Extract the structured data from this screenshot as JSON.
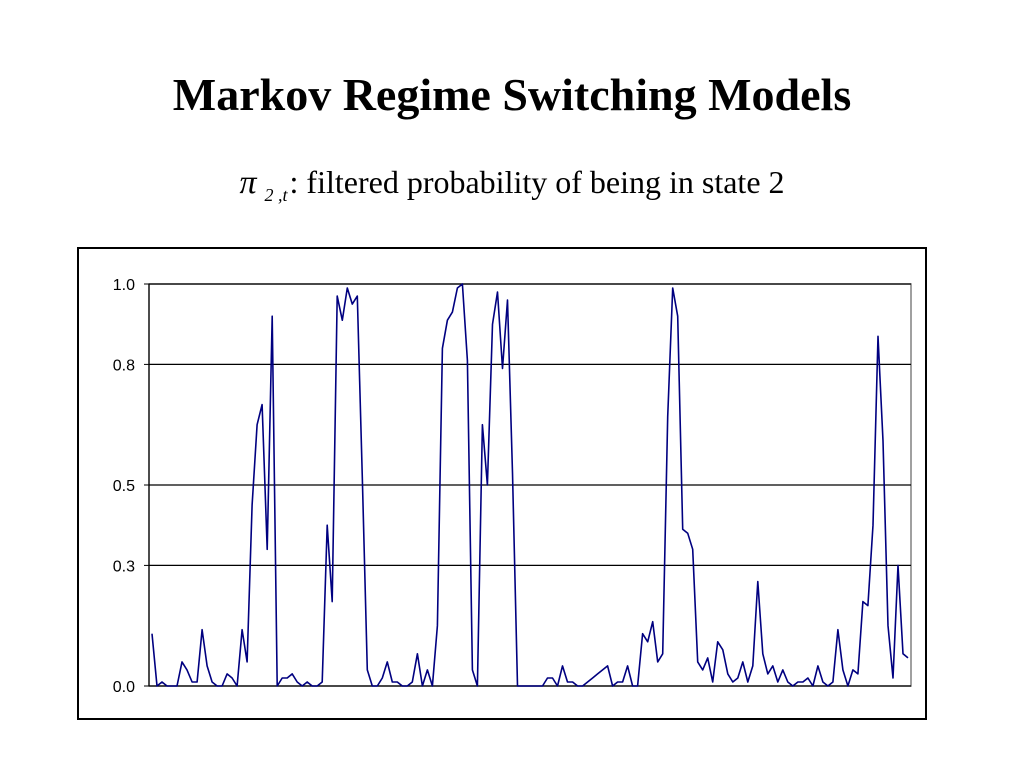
{
  "slide": {
    "title": "Markov Regime Switching Models",
    "subtitle_symbol": "π",
    "subtitle_sub": "2 ,t",
    "subtitle_text": ": filtered probability of being in state 2"
  },
  "colors": {
    "series_line": "#000080",
    "gridline": "#000000",
    "plot_border": "#808080"
  },
  "chart_data": {
    "type": "line",
    "title": "",
    "xlabel": "",
    "ylabel": "",
    "ylim": [
      0.0,
      1.0
    ],
    "yticks": [
      1.0,
      0.8,
      0.5,
      0.3,
      0.0
    ],
    "ytick_labels": [
      "1.0",
      "0.8",
      "0.5",
      "0.3",
      "0.0"
    ],
    "grid": true,
    "legend": "none",
    "series": [
      {
        "values": [
          0.13,
          0.0,
          0.01,
          0.0,
          0.0,
          0.0,
          0.06,
          0.04,
          0.01,
          0.01,
          0.14,
          0.05,
          0.01,
          0.0,
          0.0,
          0.03,
          0.02,
          0.0,
          0.14,
          0.06,
          0.45,
          0.65,
          0.7,
          0.34,
          0.92,
          0.0,
          0.02,
          0.02,
          0.03,
          0.01,
          0.0,
          0.01,
          0.0,
          0.0,
          0.01,
          0.4,
          0.21,
          0.97,
          0.91,
          0.99,
          0.95,
          0.97,
          0.52,
          0.04,
          0.0,
          0.0,
          0.02,
          0.06,
          0.01,
          0.01,
          0.0,
          0.0,
          0.01,
          0.08,
          0.0,
          0.04,
          0.0,
          0.15,
          0.84,
          0.91,
          0.93,
          0.99,
          1.0,
          0.81,
          0.04,
          0.0,
          0.65,
          0.5,
          0.9,
          0.98,
          0.79,
          0.96,
          0.53,
          0.0,
          0.0,
          0.0,
          0.0,
          0.0,
          0.0,
          0.02,
          0.02,
          0.0,
          0.05,
          0.01,
          0.01,
          0.0,
          0.0,
          0.01,
          0.02,
          0.03,
          0.04,
          0.05,
          0.0,
          0.01,
          0.01,
          0.05,
          0.0,
          0.0,
          0.13,
          0.11,
          0.16,
          0.06,
          0.08,
          0.67,
          0.99,
          0.92,
          0.39,
          0.38,
          0.34,
          0.06,
          0.04,
          0.07,
          0.01,
          0.11,
          0.09,
          0.03,
          0.01,
          0.02,
          0.06,
          0.01,
          0.05,
          0.26,
          0.08,
          0.03,
          0.05,
          0.01,
          0.04,
          0.01,
          0.0,
          0.01,
          0.01,
          0.02,
          0.0,
          0.05,
          0.01,
          0.0,
          0.01,
          0.14,
          0.04,
          0.0,
          0.04,
          0.03,
          0.21,
          0.2,
          0.4,
          0.87,
          0.61,
          0.15,
          0.02,
          0.3,
          0.08,
          0.07
        ]
      }
    ]
  }
}
